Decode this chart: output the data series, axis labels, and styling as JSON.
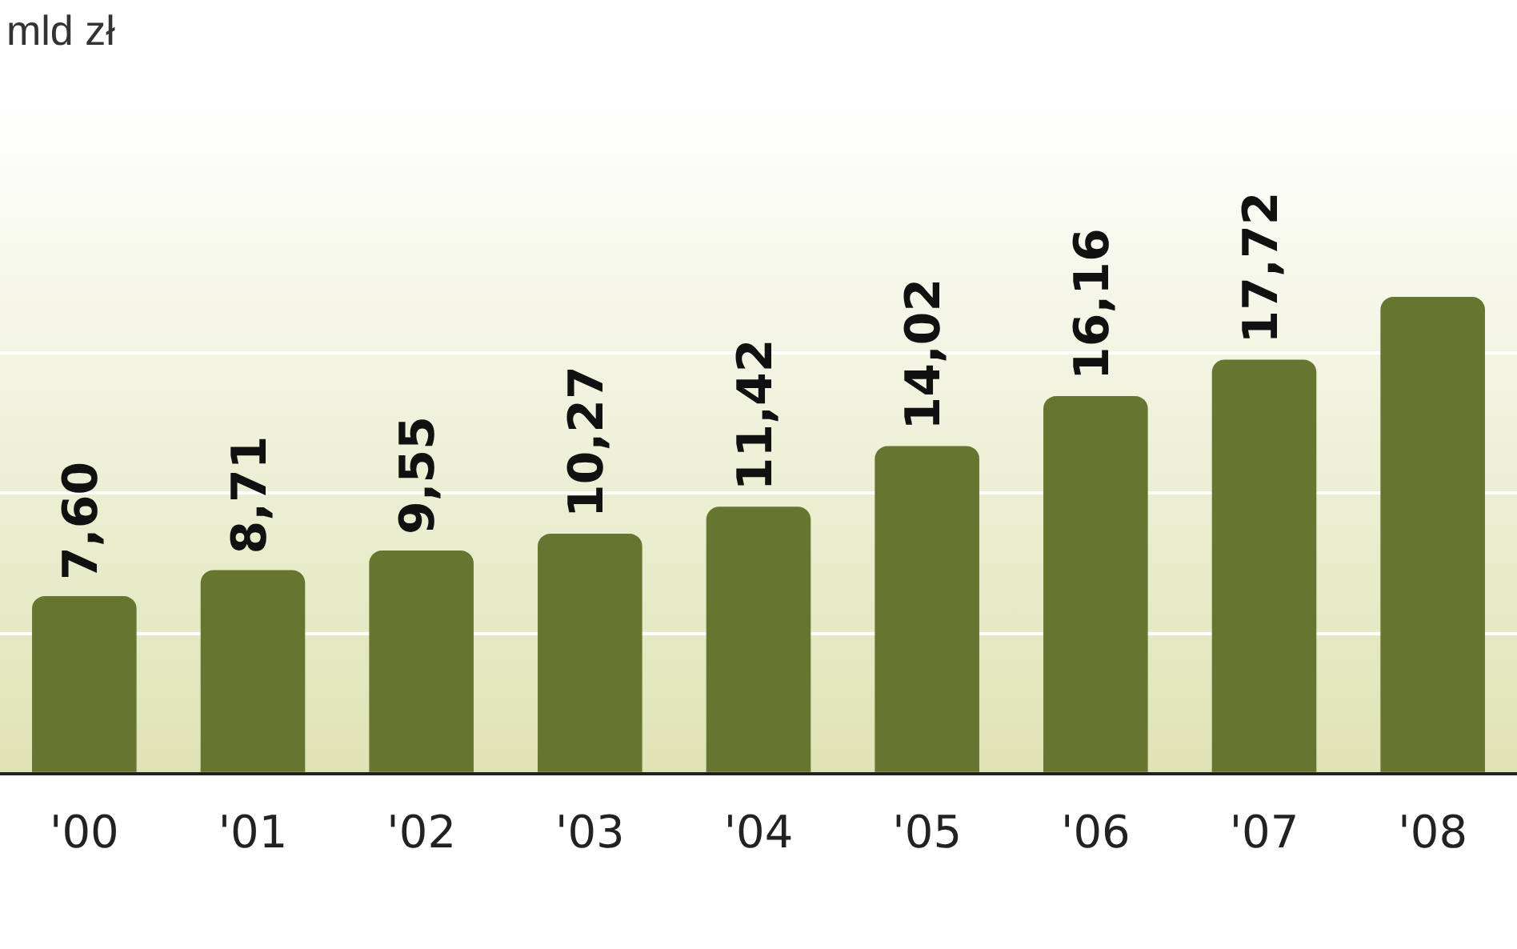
{
  "chart_data": {
    "type": "bar",
    "ylabel": "mld zł",
    "categories": [
      "'00",
      "'01",
      "'02",
      "'03",
      "'04",
      "'05",
      "'06",
      "'07",
      "'08"
    ],
    "values": [
      7.6,
      8.71,
      9.55,
      10.27,
      11.42,
      14.02,
      16.16,
      17.72,
      20.4
    ],
    "value_labels": [
      "7,60",
      "8,71",
      "9,55",
      "10,27",
      "11,42",
      "14,02",
      "16,16",
      "17,72",
      null
    ],
    "color": "#66752f",
    "ylim": [
      0,
      29
    ],
    "yticks": [
      {
        "value": 0,
        "label": null
      },
      {
        "value": 6,
        "label": null
      },
      {
        "value": 12,
        "label": null
      },
      {
        "value": 18,
        "label": null
      }
    ],
    "grid": "y",
    "tick_labels": "x",
    "legend": false
  }
}
